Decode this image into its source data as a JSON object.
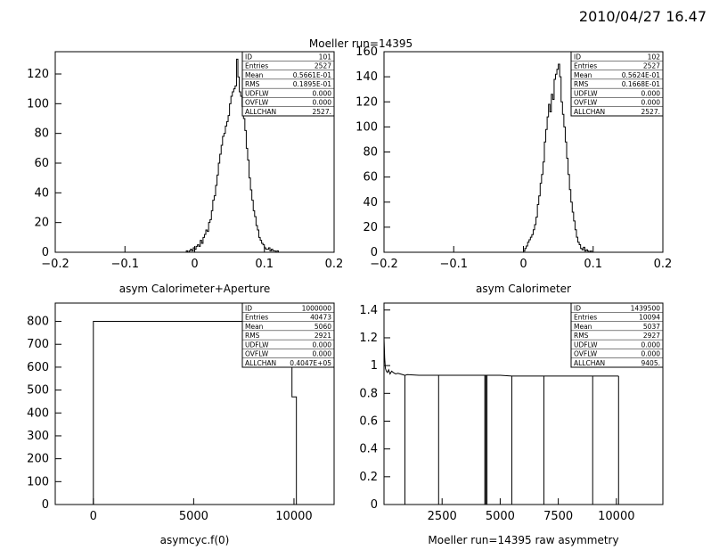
{
  "header": {
    "timestamp": "2010/04/27  16.47",
    "run_title": "Moeller run=14395"
  },
  "chart_data": [
    {
      "type": "histogram",
      "xlabel": "asym Calorimeter+Aperture",
      "xlim": [
        -0.2,
        0.2
      ],
      "ylim": [
        0,
        135
      ],
      "xticks": [
        "-0.2",
        "-0.1",
        "0",
        "0.1",
        "0.2"
      ],
      "yticks": [
        "0",
        "20",
        "40",
        "60",
        "80",
        "100",
        "120"
      ],
      "stats": [
        {
          "key": "ID",
          "value": "101"
        },
        {
          "key": "Entries",
          "value": "2527"
        },
        {
          "key": "Mean",
          "value": "0.5661E-01"
        },
        {
          "key": "RMS",
          "value": "0.1895E-01"
        },
        {
          "key": "UDFLW",
          "value": "0.000"
        },
        {
          "key": "OVFLW",
          "value": "0.000"
        },
        {
          "key": "ALLCHAN",
          "value": "2527."
        }
      ],
      "bin_width": 0.002,
      "bins_x": [
        -0.012,
        -0.01,
        -0.008,
        -0.006,
        -0.004,
        -0.002,
        0.0,
        0.002,
        0.004,
        0.006,
        0.008,
        0.01,
        0.012,
        0.014,
        0.016,
        0.018,
        0.02,
        0.022,
        0.024,
        0.026,
        0.028,
        0.03,
        0.032,
        0.034,
        0.036,
        0.038,
        0.04,
        0.042,
        0.044,
        0.046,
        0.048,
        0.05,
        0.052,
        0.054,
        0.056,
        0.058,
        0.06,
        0.062,
        0.064,
        0.066,
        0.068,
        0.07,
        0.072,
        0.074,
        0.076,
        0.078,
        0.08,
        0.082,
        0.084,
        0.086,
        0.088,
        0.09,
        0.092,
        0.094,
        0.096,
        0.098,
        0.1,
        0.102,
        0.104,
        0.106,
        0.108,
        0.11,
        0.112,
        0.114,
        0.116,
        0.118,
        0.12,
        0.122
      ],
      "bins_y": [
        1,
        0,
        1,
        2,
        1,
        3,
        2,
        4,
        5,
        4,
        8,
        6,
        10,
        12,
        15,
        14,
        20,
        22,
        28,
        35,
        38,
        45,
        52,
        60,
        66,
        72,
        78,
        80,
        85,
        88,
        92,
        100,
        105,
        108,
        110,
        112,
        130,
        118,
        108,
        105,
        98,
        90,
        82,
        70,
        62,
        50,
        42,
        35,
        28,
        24,
        18,
        15,
        10,
        8,
        6,
        5,
        3,
        2,
        2,
        3,
        1,
        2,
        1,
        1,
        0,
        1,
        0,
        0
      ]
    },
    {
      "type": "histogram",
      "xlabel": "asym Calorimeter",
      "xlim": [
        -0.2,
        0.2
      ],
      "ylim": [
        0,
        160
      ],
      "xticks": [
        "-0.2",
        "-0.1",
        "0",
        "0.1",
        "0.2"
      ],
      "yticks": [
        "0",
        "20",
        "40",
        "60",
        "80",
        "100",
        "120",
        "140",
        "160"
      ],
      "stats": [
        {
          "key": "ID",
          "value": "102"
        },
        {
          "key": "Entries",
          "value": "2527"
        },
        {
          "key": "Mean",
          "value": "0.5624E-01"
        },
        {
          "key": "RMS",
          "value": "0.1668E-01"
        },
        {
          "key": "UDFLW",
          "value": "0.000"
        },
        {
          "key": "OVFLW",
          "value": "0.000"
        },
        {
          "key": "ALLCHAN",
          "value": "2527."
        }
      ],
      "bin_width": 0.002,
      "bins_x": [
        0.0,
        0.002,
        0.004,
        0.006,
        0.008,
        0.01,
        0.012,
        0.014,
        0.016,
        0.018,
        0.02,
        0.022,
        0.024,
        0.026,
        0.028,
        0.03,
        0.032,
        0.034,
        0.036,
        0.038,
        0.04,
        0.042,
        0.044,
        0.046,
        0.048,
        0.05,
        0.052,
        0.054,
        0.056,
        0.058,
        0.06,
        0.062,
        0.064,
        0.066,
        0.068,
        0.07,
        0.072,
        0.074,
        0.076,
        0.078,
        0.08,
        0.082,
        0.084,
        0.086,
        0.088,
        0.09,
        0.092,
        0.094,
        0.096,
        0.098,
        0.1,
        0.102,
        0.104,
        0.106,
        0.108,
        0.11,
        0.112
      ],
      "bins_y": [
        1,
        3,
        5,
        8,
        10,
        12,
        14,
        18,
        22,
        28,
        38,
        45,
        55,
        62,
        72,
        88,
        98,
        108,
        118,
        112,
        126,
        122,
        138,
        142,
        146,
        150,
        140,
        120,
        110,
        100,
        88,
        75,
        62,
        50,
        40,
        32,
        25,
        18,
        12,
        8,
        6,
        3,
        2,
        4,
        1,
        2,
        1,
        0,
        1,
        0,
        0,
        0,
        0,
        0,
        0,
        0,
        0
      ]
    },
    {
      "type": "histogram",
      "xlabel": "asymcyc.f(0)",
      "xlim": [
        -1900,
        12000
      ],
      "ylim": [
        0,
        880
      ],
      "xticks": [
        "0",
        "5000",
        "10000"
      ],
      "yticks": [
        "0",
        "100",
        "200",
        "300",
        "400",
        "500",
        "600",
        "700",
        "800"
      ],
      "stats": [
        {
          "key": "ID",
          "value": "1000000"
        },
        {
          "key": "Entries",
          "value": "40473"
        },
        {
          "key": "Mean",
          "value": "5060"
        },
        {
          "key": "RMS",
          "value": "2921"
        },
        {
          "key": "UDFLW",
          "value": "0.000"
        },
        {
          "key": "OVFLW",
          "value": "0.000"
        },
        {
          "key": "ALLCHAN",
          "value": "0.4047E+05"
        }
      ],
      "blocks": [
        {
          "x0": 0,
          "x1": 9900,
          "y": 800
        },
        {
          "x0": 9900,
          "x1": 10120,
          "y": 470
        }
      ]
    },
    {
      "type": "line",
      "xlabel": "Moeller run=14395 raw asymmetry",
      "xlim": [
        0,
        12000
      ],
      "ylim": [
        0,
        1.45
      ],
      "xticks": [
        "2500",
        "5000",
        "7500",
        "10000"
      ],
      "yticks": [
        "0",
        "0.2",
        "0.4",
        "0.6",
        "0.8",
        "1",
        "1.2",
        "1.4"
      ],
      "stats": [
        {
          "key": "ID",
          "value": "1439500"
        },
        {
          "key": "Entries",
          "value": "10094"
        },
        {
          "key": "Mean",
          "value": "5037"
        },
        {
          "key": "RMS",
          "value": "2927"
        },
        {
          "key": "UDFLW",
          "value": "0.000"
        },
        {
          "key": "OVFLW",
          "value": "0.000"
        },
        {
          "key": "ALLCHAN",
          "value": "9405."
        }
      ],
      "x": [
        0,
        30,
        60,
        100,
        150,
        200,
        260,
        330,
        400,
        500,
        600,
        700,
        800,
        900,
        1000,
        1500,
        2000,
        2500,
        3000,
        3500,
        4000,
        4500,
        5000,
        5500,
        6000,
        6500,
        7000,
        7500,
        8000,
        8500,
        9000,
        9500,
        10094
      ],
      "y": [
        1.2,
        1.05,
        0.98,
        0.96,
        0.95,
        0.97,
        0.94,
        0.96,
        0.95,
        0.94,
        0.945,
        0.94,
        0.935,
        0.93,
        0.935,
        0.93,
        0.93,
        0.93,
        0.93,
        0.93,
        0.93,
        0.93,
        0.93,
        0.925,
        0.925,
        0.925,
        0.925,
        0.925,
        0.925,
        0.925,
        0.925,
        0.925,
        0.925
      ],
      "drops_x": [
        900,
        2350,
        4350,
        4420,
        5500,
        6880,
        8980,
        10094
      ]
    }
  ]
}
